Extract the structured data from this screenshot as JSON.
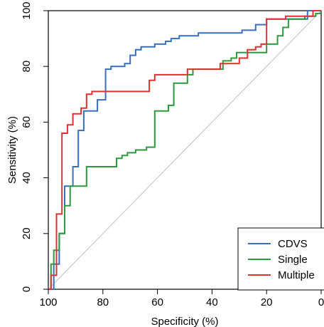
{
  "chart_data": {
    "type": "line",
    "title": "",
    "xlabel": "Specificity (%)",
    "ylabel": "Sensitivity (%)",
    "xlim": [
      100,
      0
    ],
    "ylim": [
      0,
      100
    ],
    "x_ticks": [
      "100",
      "80",
      "60",
      "40",
      "20",
      "0"
    ],
    "y_ticks": [
      "0",
      "20",
      "40",
      "60",
      "80",
      "100"
    ],
    "grid": false,
    "legend_position": "bottom-right",
    "reference_line": {
      "from": [
        100,
        0
      ],
      "to": [
        0,
        100
      ],
      "color": "#c0c0c0"
    },
    "series": [
      {
        "name": "CDVS",
        "color": "#3a6fbf",
        "points": [
          [
            100,
            0
          ],
          [
            98,
            0
          ],
          [
            98,
            9
          ],
          [
            96,
            9
          ],
          [
            96,
            20
          ],
          [
            94,
            20
          ],
          [
            94,
            37
          ],
          [
            91,
            37
          ],
          [
            91,
            44
          ],
          [
            89,
            44
          ],
          [
            89,
            57
          ],
          [
            87,
            57
          ],
          [
            87,
            64
          ],
          [
            82,
            64
          ],
          [
            82,
            68
          ],
          [
            79,
            68
          ],
          [
            79,
            79
          ],
          [
            77,
            79
          ],
          [
            77,
            80
          ],
          [
            72,
            80
          ],
          [
            72,
            81
          ],
          [
            70,
            81
          ],
          [
            70,
            84
          ],
          [
            68,
            84
          ],
          [
            68,
            86
          ],
          [
            66,
            86
          ],
          [
            66,
            87
          ],
          [
            61,
            87
          ],
          [
            61,
            88
          ],
          [
            57,
            88
          ],
          [
            57,
            89
          ],
          [
            55,
            89
          ],
          [
            55,
            90
          ],
          [
            52,
            90
          ],
          [
            52,
            91
          ],
          [
            45,
            91
          ],
          [
            45,
            92
          ],
          [
            29,
            92
          ],
          [
            29,
            93
          ],
          [
            24,
            93
          ],
          [
            24,
            95
          ],
          [
            20,
            95
          ],
          [
            20,
            97
          ],
          [
            5,
            97
          ],
          [
            5,
            100
          ],
          [
            0,
            100
          ]
        ]
      },
      {
        "name": "Single",
        "color": "#2e9a3e",
        "points": [
          [
            100,
            0
          ],
          [
            99,
            0
          ],
          [
            99,
            9
          ],
          [
            98,
            9
          ],
          [
            98,
            14
          ],
          [
            96,
            14
          ],
          [
            96,
            20
          ],
          [
            94,
            20
          ],
          [
            94,
            30
          ],
          [
            92,
            30
          ],
          [
            92,
            37
          ],
          [
            86,
            37
          ],
          [
            86,
            44
          ],
          [
            75,
            44
          ],
          [
            75,
            47
          ],
          [
            73,
            47
          ],
          [
            73,
            48
          ],
          [
            71,
            48
          ],
          [
            71,
            49
          ],
          [
            68,
            49
          ],
          [
            68,
            50
          ],
          [
            64,
            50
          ],
          [
            64,
            51
          ],
          [
            61,
            51
          ],
          [
            61,
            64
          ],
          [
            56,
            64
          ],
          [
            56,
            66
          ],
          [
            54,
            66
          ],
          [
            54,
            74
          ],
          [
            49,
            74
          ],
          [
            49,
            77
          ],
          [
            47,
            77
          ],
          [
            47,
            79
          ],
          [
            36,
            79
          ],
          [
            36,
            82
          ],
          [
            33,
            82
          ],
          [
            33,
            83
          ],
          [
            31,
            83
          ],
          [
            31,
            85
          ],
          [
            20,
            85
          ],
          [
            20,
            88
          ],
          [
            16,
            88
          ],
          [
            16,
            91
          ],
          [
            14,
            91
          ],
          [
            14,
            94
          ],
          [
            12,
            94
          ],
          [
            12,
            97
          ],
          [
            6,
            97
          ],
          [
            6,
            98
          ],
          [
            2,
            98
          ],
          [
            2,
            99
          ],
          [
            0,
            99
          ]
        ]
      },
      {
        "name": "Multiple",
        "color": "#e03030",
        "points": [
          [
            100,
            0
          ],
          [
            99,
            0
          ],
          [
            99,
            5
          ],
          [
            97,
            5
          ],
          [
            97,
            27
          ],
          [
            95,
            27
          ],
          [
            95,
            56
          ],
          [
            93,
            56
          ],
          [
            93,
            59
          ],
          [
            91,
            59
          ],
          [
            91,
            63
          ],
          [
            88,
            63
          ],
          [
            88,
            65
          ],
          [
            86,
            65
          ],
          [
            86,
            70
          ],
          [
            84,
            70
          ],
          [
            84,
            71
          ],
          [
            63,
            71
          ],
          [
            63,
            75
          ],
          [
            61,
            75
          ],
          [
            61,
            77
          ],
          [
            49,
            77
          ],
          [
            49,
            79
          ],
          [
            37,
            79
          ],
          [
            37,
            81
          ],
          [
            30,
            81
          ],
          [
            30,
            83
          ],
          [
            27,
            83
          ],
          [
            27,
            86
          ],
          [
            24,
            86
          ],
          [
            24,
            87
          ],
          [
            22,
            87
          ],
          [
            22,
            88
          ],
          [
            20,
            88
          ],
          [
            20,
            97
          ],
          [
            13,
            97
          ],
          [
            13,
            98
          ],
          [
            3,
            98
          ],
          [
            3,
            100
          ],
          [
            0,
            100
          ]
        ]
      }
    ]
  }
}
